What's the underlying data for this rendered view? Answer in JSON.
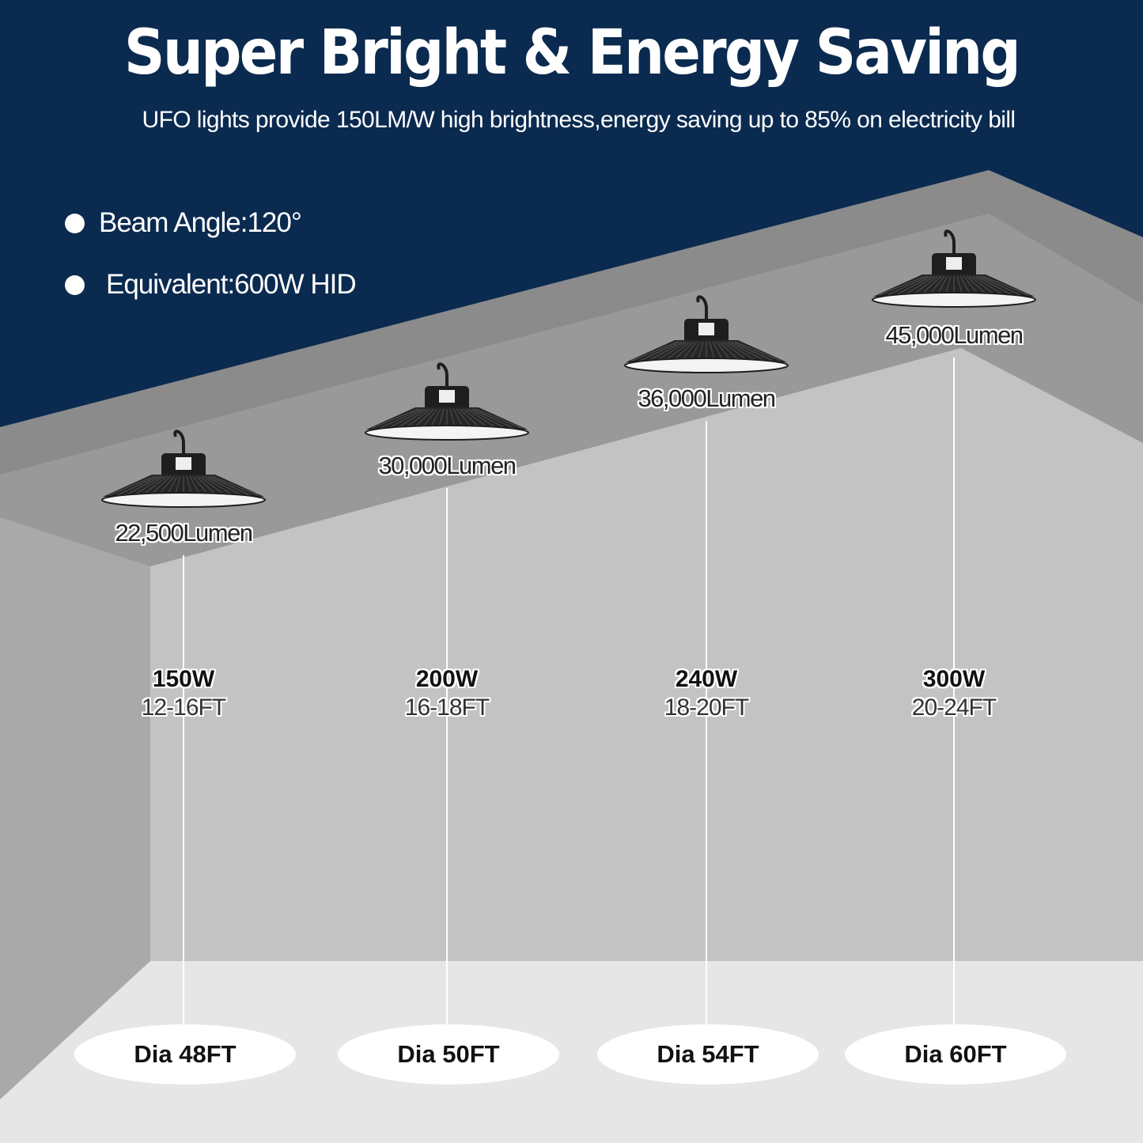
{
  "header": {
    "title": "Super Bright & Energy Saving",
    "subtitle": "UFO lights provide 150LM/W high brightness,energy saving up to 85% on electricity bill"
  },
  "features": [
    {
      "label": "Beam Angle:120°"
    },
    {
      "label": "Equivalent:600W HID"
    }
  ],
  "models": [
    {
      "lumen": "22,500Lumen",
      "watt": "150W",
      "height": "12-16FT",
      "diameter": "Dia 48FT"
    },
    {
      "lumen": "30,000Lumen",
      "watt": "200W",
      "height": "16-18FT",
      "diameter": "Dia 50FT"
    },
    {
      "lumen": "36,000Lumen",
      "watt": "240W",
      "height": "18-20FT",
      "diameter": "Dia 54FT"
    },
    {
      "lumen": "45,000Lumen",
      "watt": "300W",
      "height": "20-24FT",
      "diameter": "Dia 60FT"
    }
  ],
  "colors": {
    "background": "#0b2a4f",
    "ceiling_outer": "#8b8b8b",
    "ceiling_inner": "#999999",
    "left_wall": "#a9a9a9",
    "back_wall": "#c3c3c3",
    "floor": "#e6e6e6",
    "lamp_body": "#1e1e1e"
  },
  "icons": {
    "bullet": "circle-bullet-icon",
    "lamp": "ufo-high-bay-lamp-icon"
  }
}
